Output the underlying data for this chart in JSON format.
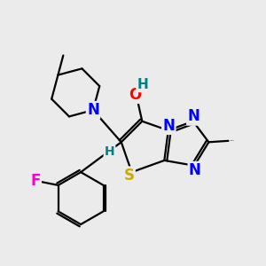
{
  "background_color": "#ebebeb",
  "atom_colors": {
    "C": "#000000",
    "N": "#0000ff",
    "O": "#ff0000",
    "S": "#ccaa00",
    "F": "#ff00cc",
    "H": "#008080"
  },
  "bond_color": "#000000",
  "bond_width": 1.6,
  "font_size_atom": 12,
  "font_size_small": 9
}
